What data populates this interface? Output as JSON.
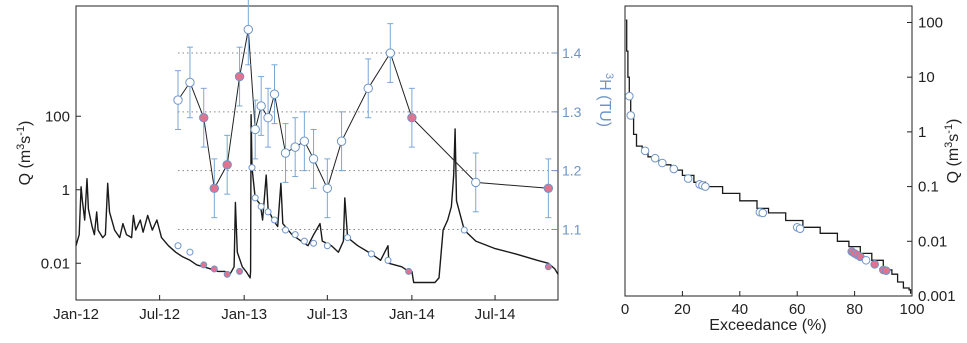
{
  "chart_data": [
    {
      "type": "line",
      "description_role": "left",
      "x_ticks": [
        "Jan-12",
        "Jul-12",
        "Jan-13",
        "Jul-13",
        "Jan-14",
        "Jul-14"
      ],
      "xlim": [
        "2012-01-01",
        "2014-11-15"
      ],
      "y_left": {
        "label_main": "Q (m",
        "label_sup1": "3",
        "label_mid": "s",
        "label_sup2": "-1",
        "label_end": ")",
        "scale": "log",
        "ylim": [
          0.001,
          100000
        ],
        "ticks": [
          {
            "value": 100,
            "label": "100"
          },
          {
            "value": 1,
            "label": "1"
          },
          {
            "value": 0.01,
            "label": "0.01"
          }
        ]
      },
      "y_right": {
        "label_sup": "3",
        "label_main": "H (TU)",
        "ylim": [
          0.98,
          1.48
        ],
        "ticks": [
          {
            "value": 1.1,
            "label": "1.1"
          },
          {
            "value": 1.2,
            "label": "1.2"
          },
          {
            "value": 1.3,
            "label": "1.3"
          },
          {
            "value": 1.4,
            "label": "1.4"
          }
        ]
      },
      "discharge_series": {
        "name": "Q",
        "color": "#1a1a1a",
        "points": [
          [
            "2012-01-01",
            0.03
          ],
          [
            "2012-01-08",
            0.06
          ],
          [
            "2012-01-12",
            1.2
          ],
          [
            "2012-01-15",
            0.5
          ],
          [
            "2012-01-20",
            0.15
          ],
          [
            "2012-01-25",
            2.0
          ],
          [
            "2012-01-28",
            0.3
          ],
          [
            "2012-02-05",
            0.1
          ],
          [
            "2012-02-10",
            0.06
          ],
          [
            "2012-02-15",
            0.25
          ],
          [
            "2012-02-18",
            0.08
          ],
          [
            "2012-02-28",
            0.05
          ],
          [
            "2012-03-05",
            0.06
          ],
          [
            "2012-03-10",
            1.5
          ],
          [
            "2012-03-14",
            0.25
          ],
          [
            "2012-03-25",
            0.08
          ],
          [
            "2012-04-05",
            0.05
          ],
          [
            "2012-04-12",
            0.12
          ],
          [
            "2012-04-20",
            0.06
          ],
          [
            "2012-05-01",
            0.05
          ],
          [
            "2012-05-05",
            0.2
          ],
          [
            "2012-05-10",
            0.08
          ],
          [
            "2012-05-20",
            0.15
          ],
          [
            "2012-05-26",
            0.07
          ],
          [
            "2012-06-05",
            0.2
          ],
          [
            "2012-06-15",
            0.08
          ],
          [
            "2012-06-25",
            0.15
          ],
          [
            "2012-07-05",
            0.05
          ],
          [
            "2012-07-20",
            0.03
          ],
          [
            "2012-08-05",
            0.02
          ],
          [
            "2012-08-20",
            0.015
          ],
          [
            "2012-09-05",
            0.012
          ],
          [
            "2012-09-20",
            0.009
          ],
          [
            "2012-10-05",
            0.008
          ],
          [
            "2012-10-20",
            0.007
          ],
          [
            "2012-11-05",
            0.006
          ],
          [
            "2012-11-20",
            0.006
          ],
          [
            "2012-12-01",
            0.005
          ],
          [
            "2012-12-10",
            0.008
          ],
          [
            "2012-12-13",
            0.45
          ],
          [
            "2012-12-17",
            0.02
          ],
          [
            "2012-12-28",
            0.008
          ],
          [
            "2013-01-05",
            0.006
          ],
          [
            "2013-01-14",
            0.004
          ],
          [
            "2013-01-15",
            0.006
          ],
          [
            "2013-01-16",
            110.0
          ],
          [
            "2013-01-18",
            4.0
          ],
          [
            "2013-01-25",
            0.6
          ],
          [
            "2013-02-05",
            0.4
          ],
          [
            "2013-02-10",
            0.15
          ],
          [
            "2013-02-18",
            2.5
          ],
          [
            "2013-02-22",
            0.3
          ],
          [
            "2013-03-05",
            0.15
          ],
          [
            "2013-03-15",
            0.1
          ],
          [
            "2013-03-22",
            1.5
          ],
          [
            "2013-03-26",
            0.12
          ],
          [
            "2013-04-15",
            0.06
          ],
          [
            "2013-05-05",
            0.04
          ],
          [
            "2013-05-20",
            0.03
          ],
          [
            "2013-06-01",
            0.06
          ],
          [
            "2013-06-15",
            0.12
          ],
          [
            "2013-06-20",
            0.04
          ],
          [
            "2013-07-10",
            0.03
          ],
          [
            "2013-07-25",
            0.02
          ],
          [
            "2013-08-05",
            0.04
          ],
          [
            "2013-08-08",
            0.6
          ],
          [
            "2013-08-14",
            0.05
          ],
          [
            "2013-09-05",
            0.03
          ],
          [
            "2013-10-05",
            0.018
          ],
          [
            "2013-10-25",
            0.012
          ],
          [
            "2013-11-10",
            0.03
          ],
          [
            "2013-11-12",
            0.01
          ],
          [
            "2013-12-10",
            0.008
          ],
          [
            "2013-12-25",
            0.006
          ],
          [
            "2014-01-01",
            0.006
          ],
          [
            "2014-01-05",
            0.003
          ],
          [
            "2014-02-05",
            0.003
          ],
          [
            "2014-02-20",
            0.003
          ],
          [
            "2014-03-01",
            0.004
          ],
          [
            "2014-03-10",
            0.08
          ],
          [
            "2014-03-20",
            0.15
          ],
          [
            "2014-03-28",
            0.35
          ],
          [
            "2014-04-02",
            2.5
          ],
          [
            "2014-04-05",
            45.0
          ],
          [
            "2014-04-08",
            0.5
          ],
          [
            "2014-04-25",
            0.08
          ],
          [
            "2014-05-20",
            0.04
          ],
          [
            "2014-07-01",
            0.025
          ],
          [
            "2014-08-15",
            0.018
          ],
          [
            "2014-10-01",
            0.012
          ],
          [
            "2014-10-25",
            0.01
          ],
          [
            "2014-11-08",
            0.007
          ],
          [
            "2014-11-15",
            0.005
          ]
        ]
      },
      "tritium_series": {
        "name": "3H",
        "line_color": "#222222",
        "marker_edge": "#6f95c8",
        "open_fill": "#ffffff",
        "filled_fill": "#e0748e",
        "errorbar_color": "#7ba7d6",
        "points": [
          {
            "date": "2012-08-10",
            "value": 1.32,
            "err": 0.05,
            "filled": false
          },
          {
            "date": "2012-09-05",
            "value": 1.35,
            "err": 0.06,
            "filled": false
          },
          {
            "date": "2012-10-05",
            "value": 1.29,
            "err": 0.05,
            "filled": true
          },
          {
            "date": "2012-10-28",
            "value": 1.17,
            "err": 0.05,
            "filled": true
          },
          {
            "date": "2012-11-25",
            "value": 1.21,
            "err": 0.05,
            "filled": true
          },
          {
            "date": "2012-12-22",
            "value": 1.36,
            "err": 0.05,
            "filled": true
          },
          {
            "date": "2013-01-10",
            "value": 1.44,
            "err": 0.06,
            "filled": false
          },
          {
            "date": "2013-01-25",
            "value": 1.27,
            "err": 0.05,
            "filled": false
          },
          {
            "date": "2013-02-07",
            "value": 1.31,
            "err": 0.05,
            "filled": false
          },
          {
            "date": "2013-02-22",
            "value": 1.29,
            "err": 0.05,
            "filled": false
          },
          {
            "date": "2013-03-08",
            "value": 1.33,
            "err": 0.05,
            "filled": false
          },
          {
            "date": "2013-04-01",
            "value": 1.23,
            "err": 0.05,
            "filled": false
          },
          {
            "date": "2013-04-22",
            "value": 1.24,
            "err": 0.05,
            "filled": false
          },
          {
            "date": "2013-05-12",
            "value": 1.25,
            "err": 0.05,
            "filled": false
          },
          {
            "date": "2013-06-01",
            "value": 1.22,
            "err": 0.05,
            "filled": false
          },
          {
            "date": "2013-07-01",
            "value": 1.17,
            "err": 0.05,
            "filled": false
          },
          {
            "date": "2013-08-01",
            "value": 1.25,
            "err": 0.05,
            "filled": false
          },
          {
            "date": "2013-09-28",
            "value": 1.34,
            "err": 0.05,
            "filled": false
          },
          {
            "date": "2013-11-15",
            "value": 1.4,
            "err": 0.05,
            "filled": false
          },
          {
            "date": "2014-01-01",
            "value": 1.29,
            "err": 0.05,
            "filled": true
          },
          {
            "date": "2014-05-20",
            "value": 1.18,
            "err": 0.05,
            "filled": false
          },
          {
            "date": "2014-10-25",
            "value": 1.17,
            "err": 0.05,
            "filled": true
          }
        ]
      },
      "sample_markers_on_Q": [
        {
          "date": "2012-08-10",
          "q": 0.03,
          "filled": false
        },
        {
          "date": "2012-09-05",
          "q": 0.02,
          "filled": false
        },
        {
          "date": "2012-10-05",
          "q": 0.009,
          "filled": true
        },
        {
          "date": "2012-10-28",
          "q": 0.007,
          "filled": true
        },
        {
          "date": "2012-11-25",
          "q": 0.005,
          "filled": true
        },
        {
          "date": "2012-12-22",
          "q": 0.006,
          "filled": true
        },
        {
          "date": "2013-01-18",
          "q": 4.0,
          "filled": false
        },
        {
          "date": "2013-01-25",
          "q": 0.6,
          "filled": false
        },
        {
          "date": "2013-02-07",
          "q": 0.35,
          "filled": false
        },
        {
          "date": "2013-02-22",
          "q": 0.25,
          "filled": false
        },
        {
          "date": "2013-03-08",
          "q": 0.15,
          "filled": false
        },
        {
          "date": "2013-04-01",
          "q": 0.08,
          "filled": false
        },
        {
          "date": "2013-04-22",
          "q": 0.06,
          "filled": false
        },
        {
          "date": "2013-05-12",
          "q": 0.04,
          "filled": false
        },
        {
          "date": "2013-06-01",
          "q": 0.035,
          "filled": false
        },
        {
          "date": "2013-07-01",
          "q": 0.03,
          "filled": false
        },
        {
          "date": "2013-08-14",
          "q": 0.05,
          "filled": false
        },
        {
          "date": "2013-10-05",
          "q": 0.018,
          "filled": false
        },
        {
          "date": "2013-11-10",
          "q": 0.012,
          "filled": false
        },
        {
          "date": "2013-12-25",
          "q": 0.006,
          "filled": true
        },
        {
          "date": "2014-04-25",
          "q": 0.08,
          "filled": false
        },
        {
          "date": "2014-10-25",
          "q": 0.008,
          "filled": true
        }
      ]
    },
    {
      "type": "line",
      "description_role": "right",
      "xlabel": "Exceedance (%)",
      "xlim": [
        0,
        100
      ],
      "x_ticks": [
        0,
        20,
        40,
        60,
        80,
        100
      ],
      "y": {
        "label_main": "Q (m",
        "label_sup1": "3",
        "label_mid": "s",
        "label_sup2": "-1",
        "label_end": ")",
        "scale": "log",
        "ylim": [
          0.001,
          200
        ],
        "ticks": [
          {
            "value": 100,
            "label": "100"
          },
          {
            "value": 10,
            "label": "10"
          },
          {
            "value": 1,
            "label": "1"
          },
          {
            "value": 0.1,
            "label": "0.1"
          },
          {
            "value": 0.01,
            "label": "0.01"
          },
          {
            "value": 0.001,
            "label": "0.001"
          }
        ]
      },
      "curve": {
        "color": "#1a1a1a",
        "points": [
          [
            0.3,
            110
          ],
          [
            0.6,
            30
          ],
          [
            1,
            10
          ],
          [
            1.5,
            4
          ],
          [
            2,
            1.8
          ],
          [
            3,
            0.9
          ],
          [
            4,
            0.55
          ],
          [
            6,
            0.42
          ],
          [
            8,
            0.35
          ],
          [
            10,
            0.3
          ],
          [
            13,
            0.25
          ],
          [
            16,
            0.2
          ],
          [
            20,
            0.16
          ],
          [
            24,
            0.12
          ],
          [
            28,
            0.1
          ],
          [
            34,
            0.075
          ],
          [
            40,
            0.055
          ],
          [
            46,
            0.04
          ],
          [
            50,
            0.033
          ],
          [
            56,
            0.024
          ],
          [
            62,
            0.018
          ],
          [
            68,
            0.014
          ],
          [
            74,
            0.01
          ],
          [
            78,
            0.008
          ],
          [
            82,
            0.006
          ],
          [
            86,
            0.0045
          ],
          [
            90,
            0.003
          ],
          [
            93,
            0.0025
          ],
          [
            95,
            0.0018
          ],
          [
            97,
            0.0014
          ],
          [
            99,
            0.0013
          ],
          [
            99.5,
            0.0011
          ]
        ]
      },
      "markers": [
        {
          "x": 1.5,
          "q": 4.5,
          "filled": false
        },
        {
          "x": 2.0,
          "q": 2.0,
          "filled": false
        },
        {
          "x": 7.0,
          "q": 0.45,
          "filled": false
        },
        {
          "x": 10.5,
          "q": 0.33,
          "filled": false
        },
        {
          "x": 13.0,
          "q": 0.27,
          "filled": false
        },
        {
          "x": 17.0,
          "q": 0.21,
          "filled": false
        },
        {
          "x": 22.0,
          "q": 0.14,
          "filled": false
        },
        {
          "x": 26.0,
          "q": 0.11,
          "filled": false
        },
        {
          "x": 27.0,
          "q": 0.105,
          "filled": false
        },
        {
          "x": 28.0,
          "q": 0.1,
          "filled": false
        },
        {
          "x": 47.0,
          "q": 0.034,
          "filled": false
        },
        {
          "x": 48.0,
          "q": 0.033,
          "filled": false
        },
        {
          "x": 60.0,
          "q": 0.018,
          "filled": false
        },
        {
          "x": 61.0,
          "q": 0.017,
          "filled": false
        },
        {
          "x": 79.0,
          "q": 0.0065,
          "filled": true
        },
        {
          "x": 80.0,
          "q": 0.006,
          "filled": true
        },
        {
          "x": 81.0,
          "q": 0.0056,
          "filled": true
        },
        {
          "x": 82.0,
          "q": 0.0052,
          "filled": true
        },
        {
          "x": 84.0,
          "q": 0.0045,
          "filled": false
        },
        {
          "x": 87.0,
          "q": 0.0038,
          "filled": true
        },
        {
          "x": 90.0,
          "q": 0.003,
          "filled": true
        },
        {
          "x": 91.0,
          "q": 0.0029,
          "filled": true
        }
      ]
    }
  ]
}
